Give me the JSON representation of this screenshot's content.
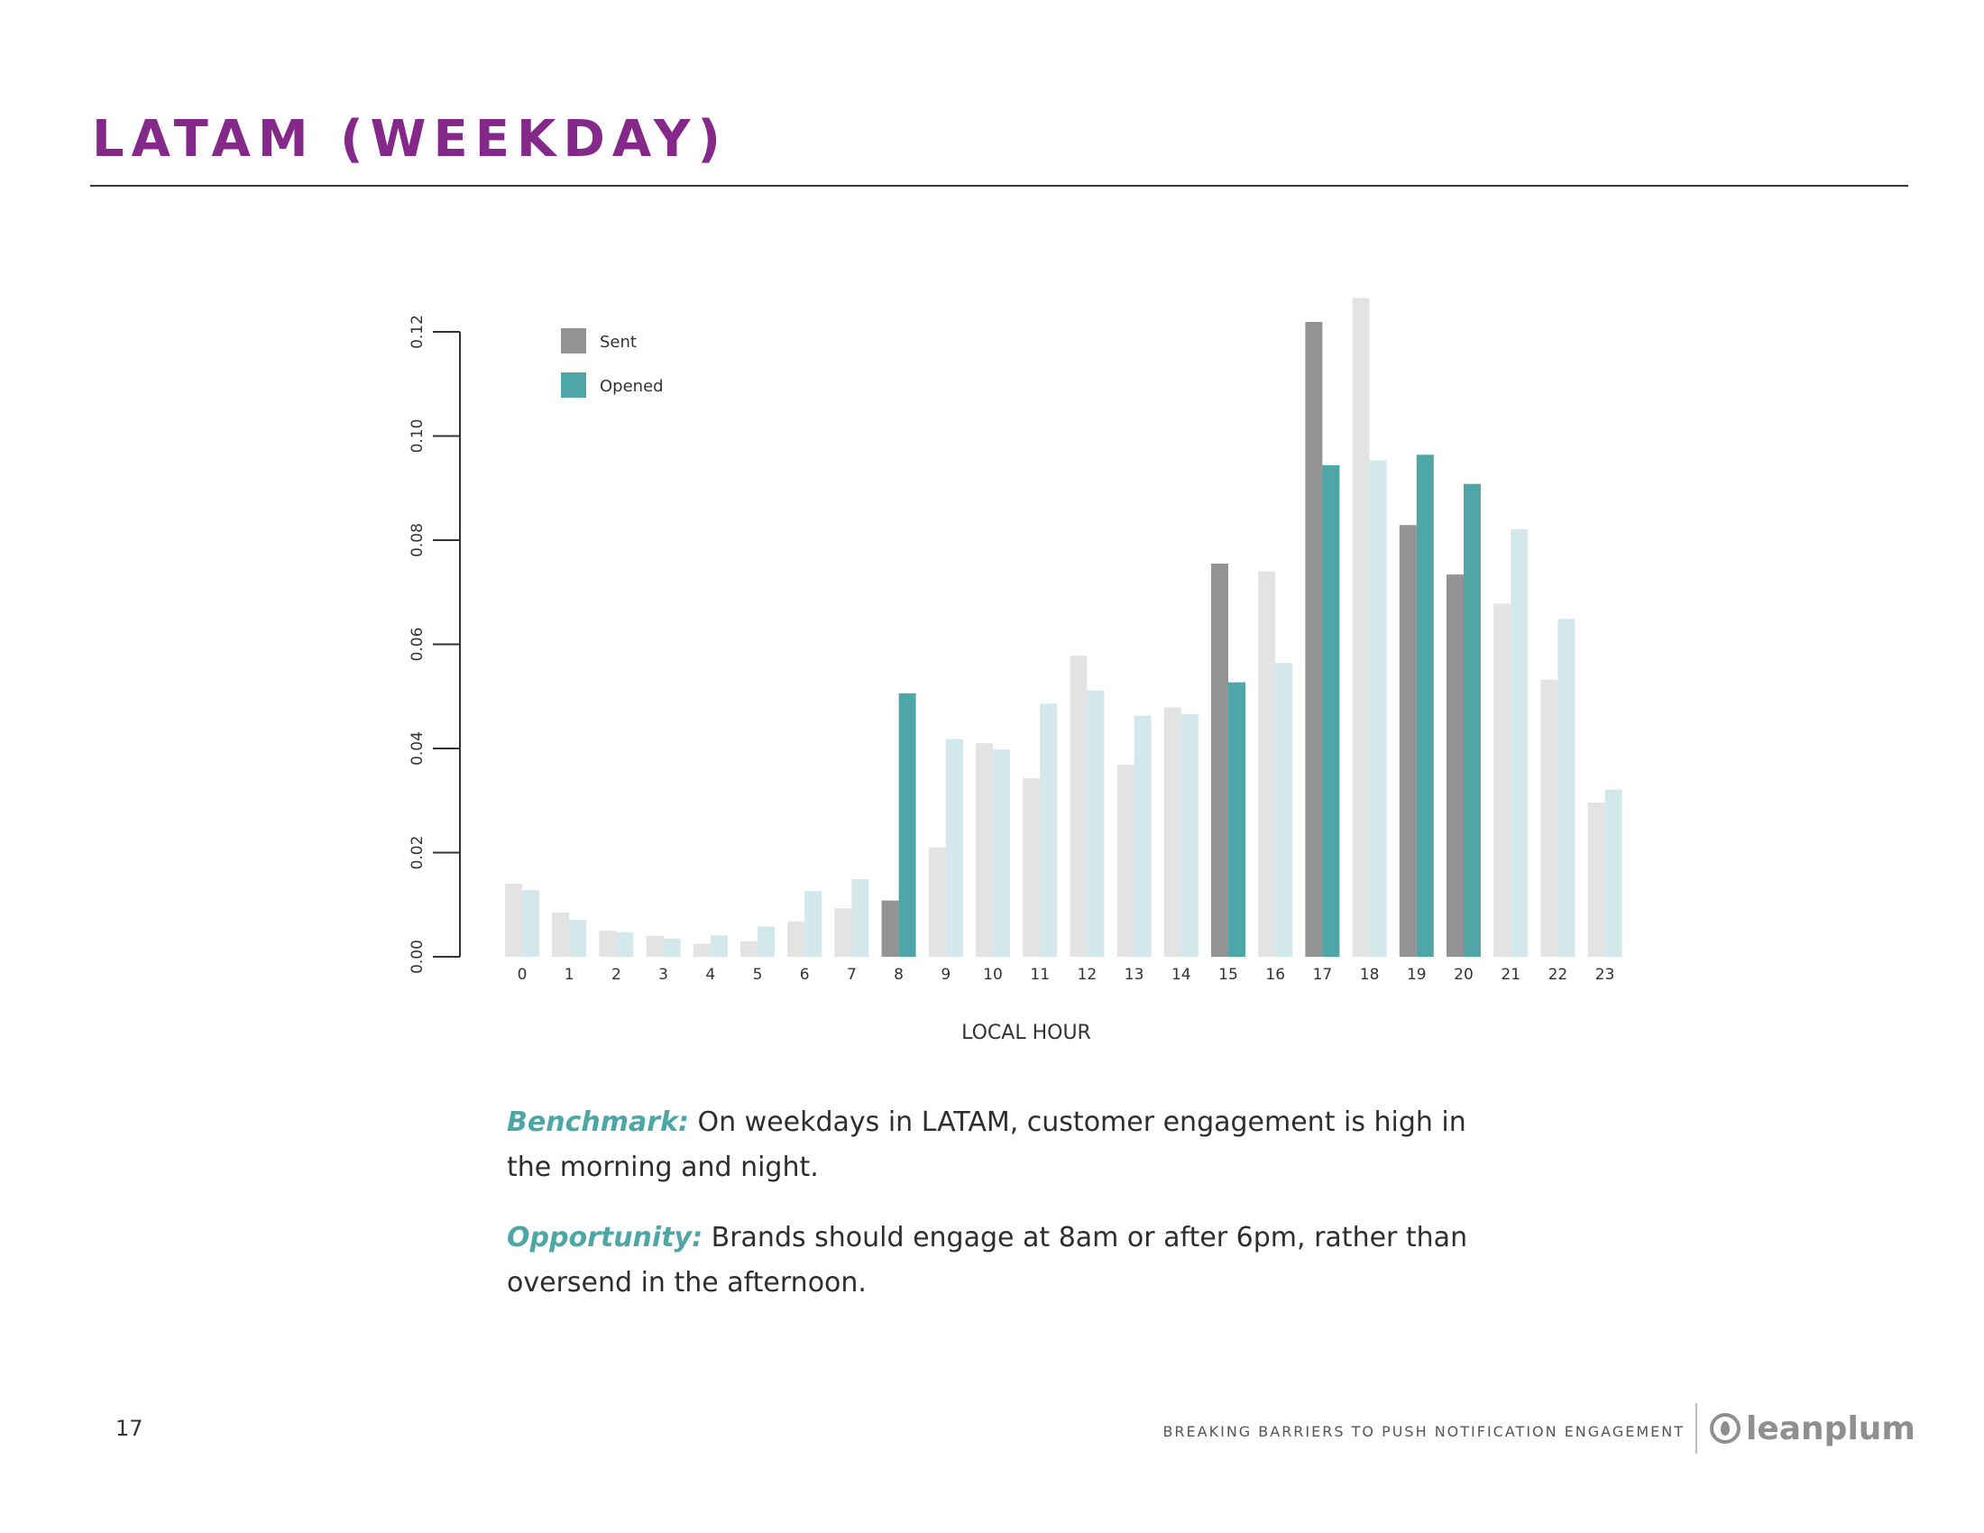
{
  "page": {
    "title": "LATAM (WEEKDAY)",
    "page_number": "17",
    "footer_text": "BREAKING BARRIERS TO PUSH NOTIFICATION ENGAGEMENT",
    "brand": "leanplum"
  },
  "notes": {
    "benchmark_label": "Benchmark:",
    "benchmark_text": " On weekdays in LATAM, customer engagement is high in the morning and night.",
    "opportunity_label": "Opportunity:",
    "opportunity_text": " Brands should engage at 8am or after 6pm, rather than oversend in the afternoon."
  },
  "colors": {
    "sent": "#939396",
    "opened": "#4fa6a6",
    "sent_faded": "#e3e3e3",
    "opened_faded": "#d2e8ea",
    "title": "#84288a"
  },
  "chart_data": {
    "type": "bar",
    "xlabel": "LOCAL HOUR",
    "ylabel": "",
    "ylim": [
      0,
      0.12
    ],
    "yticks": [
      "0.00",
      "0.02",
      "0.04",
      "0.06",
      "0.08",
      "0.10",
      "0.12"
    ],
    "categories": [
      "0",
      "1",
      "2",
      "3",
      "4",
      "5",
      "6",
      "7",
      "8",
      "9",
      "10",
      "11",
      "12",
      "13",
      "14",
      "15",
      "16",
      "17",
      "18",
      "19",
      "20",
      "21",
      "22",
      "23"
    ],
    "highlighted_hours": [
      "8",
      "15",
      "17",
      "19",
      "20"
    ],
    "legend_position": "top-left",
    "series": [
      {
        "name": "Sent",
        "values": [
          0.014,
          0.0085,
          0.005,
          0.004,
          0.0025,
          0.003,
          0.0068,
          0.0093,
          0.0108,
          0.021,
          0.041,
          0.0343,
          0.0578,
          0.0369,
          0.0479,
          0.0755,
          0.074,
          0.1219,
          0.1265,
          0.0829,
          0.0734,
          0.0678,
          0.0532,
          0.0296
        ]
      },
      {
        "name": "Opened",
        "values": [
          0.0128,
          0.0071,
          0.0047,
          0.0035,
          0.0041,
          0.0058,
          0.0126,
          0.0149,
          0.0506,
          0.0418,
          0.0398,
          0.0486,
          0.0511,
          0.0463,
          0.0466,
          0.0527,
          0.0564,
          0.0944,
          0.0953,
          0.0964,
          0.0908,
          0.0821,
          0.0649,
          0.0321
        ]
      }
    ]
  }
}
